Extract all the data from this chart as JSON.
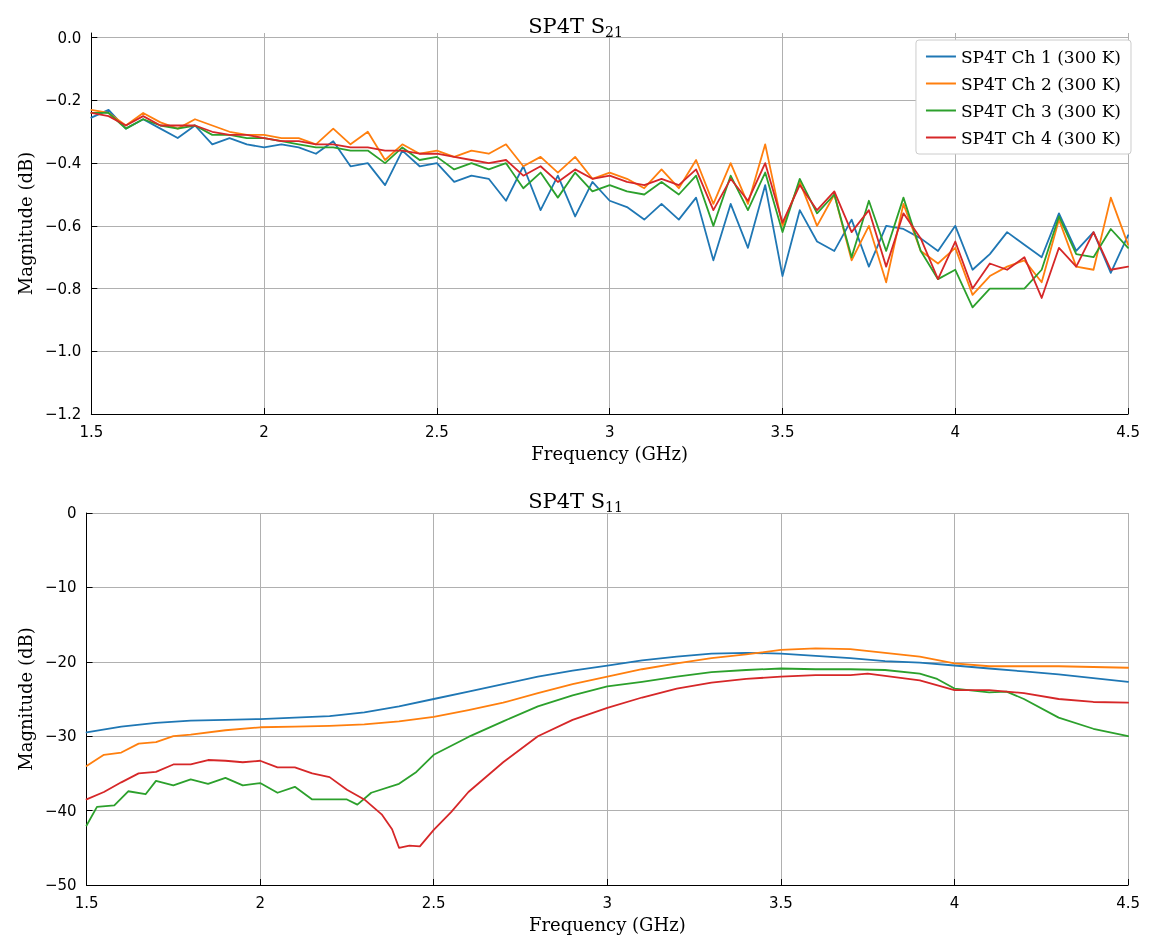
{
  "chart_data": [
    {
      "type": "line",
      "title": "SP4T S$_{21}$",
      "xlabel": "Frequency (GHz)",
      "ylabel": "Magnitude (dB)",
      "xlim": [
        1.5,
        4.5
      ],
      "ylim": [
        -1.2,
        0.015
      ],
      "xticks": [
        1.5,
        2,
        2.5,
        3,
        3.5,
        4,
        4.5
      ],
      "yticks": [
        {
          "value": -1.2,
          "label": "−1.2"
        },
        {
          "value": -1.0,
          "label": "−1.0"
        },
        {
          "value": -0.8,
          "label": "−0.8"
        },
        {
          "value": -0.6,
          "label": "−0.6"
        },
        {
          "value": -0.4,
          "label": "−0.4"
        },
        {
          "value": -0.2,
          "label": "−0.2"
        },
        {
          "value": 0,
          "label": "0.0"
        }
      ],
      "grid": true,
      "legend": "top right",
      "x": [
        1.5,
        1.55,
        1.6,
        1.65,
        1.7,
        1.75,
        1.8,
        1.85,
        1.9,
        1.95,
        2.0,
        2.05,
        2.1,
        2.15,
        2.2,
        2.25,
        2.3,
        2.35,
        2.4,
        2.45,
        2.5,
        2.55,
        2.6,
        2.65,
        2.7,
        2.75,
        2.8,
        2.85,
        2.9,
        2.95,
        3.0,
        3.05,
        3.1,
        3.15,
        3.2,
        3.25,
        3.3,
        3.35,
        3.4,
        3.45,
        3.5,
        3.55,
        3.6,
        3.65,
        3.7,
        3.75,
        3.8,
        3.85,
        3.9,
        3.95,
        4.0,
        4.05,
        4.1,
        4.15,
        4.2,
        4.25,
        4.3,
        4.35,
        4.4,
        4.45,
        4.5
      ],
      "series": [
        {
          "name": "SP4T Ch 1 (300 K)",
          "color": "#1f77b4",
          "values": [
            -0.255,
            -0.23,
            -0.29,
            -0.26,
            -0.29,
            -0.32,
            -0.28,
            -0.34,
            -0.32,
            -0.34,
            -0.35,
            -0.34,
            -0.35,
            -0.37,
            -0.33,
            -0.41,
            -0.4,
            -0.47,
            -0.36,
            -0.41,
            -0.4,
            -0.46,
            -0.44,
            -0.45,
            -0.52,
            -0.41,
            -0.55,
            -0.44,
            -0.57,
            -0.46,
            -0.52,
            -0.54,
            -0.58,
            -0.53,
            -0.58,
            -0.51,
            -0.71,
            -0.53,
            -0.67,
            -0.47,
            -0.76,
            -0.55,
            -0.65,
            -0.68,
            -0.58,
            -0.73,
            -0.6,
            -0.61,
            -0.64,
            -0.68,
            -0.6,
            -0.74,
            -0.69,
            -0.62,
            -0.66,
            -0.7,
            -0.56,
            -0.68,
            -0.62,
            -0.75,
            -0.63
          ]
        },
        {
          "name": "SP4T Ch 2 (300 K)",
          "color": "#ff7f0e",
          "values": [
            -0.23,
            -0.24,
            -0.28,
            -0.24,
            -0.27,
            -0.29,
            -0.26,
            -0.28,
            -0.3,
            -0.31,
            -0.31,
            -0.32,
            -0.32,
            -0.34,
            -0.29,
            -0.34,
            -0.3,
            -0.39,
            -0.34,
            -0.37,
            -0.36,
            -0.38,
            -0.36,
            -0.37,
            -0.34,
            -0.41,
            -0.38,
            -0.43,
            -0.38,
            -0.45,
            -0.43,
            -0.45,
            -0.48,
            -0.42,
            -0.48,
            -0.39,
            -0.53,
            -0.4,
            -0.53,
            -0.34,
            -0.6,
            -0.46,
            -0.6,
            -0.5,
            -0.71,
            -0.6,
            -0.78,
            -0.53,
            -0.68,
            -0.72,
            -0.67,
            -0.82,
            -0.76,
            -0.73,
            -0.71,
            -0.78,
            -0.58,
            -0.73,
            -0.74,
            -0.51,
            -0.66
          ]
        },
        {
          "name": "SP4T Ch 3 (300 K)",
          "color": "#2ca02c",
          "values": [
            -0.24,
            -0.24,
            -0.29,
            -0.26,
            -0.28,
            -0.29,
            -0.28,
            -0.31,
            -0.31,
            -0.32,
            -0.32,
            -0.33,
            -0.34,
            -0.35,
            -0.35,
            -0.36,
            -0.36,
            -0.4,
            -0.35,
            -0.39,
            -0.38,
            -0.42,
            -0.4,
            -0.42,
            -0.4,
            -0.48,
            -0.43,
            -0.51,
            -0.43,
            -0.49,
            -0.47,
            -0.49,
            -0.5,
            -0.46,
            -0.5,
            -0.44,
            -0.6,
            -0.44,
            -0.55,
            -0.43,
            -0.62,
            -0.45,
            -0.56,
            -0.5,
            -0.7,
            -0.52,
            -0.68,
            -0.51,
            -0.68,
            -0.77,
            -0.74,
            -0.86,
            -0.8,
            -0.8,
            -0.8,
            -0.74,
            -0.57,
            -0.69,
            -0.7,
            -0.61,
            -0.67
          ]
        },
        {
          "name": "SP4T Ch 4 (300 K)",
          "color": "#d62728",
          "values": [
            -0.24,
            -0.25,
            -0.28,
            -0.25,
            -0.28,
            -0.28,
            -0.28,
            -0.3,
            -0.31,
            -0.31,
            -0.32,
            -0.33,
            -0.33,
            -0.34,
            -0.34,
            -0.35,
            -0.35,
            -0.36,
            -0.36,
            -0.37,
            -0.37,
            -0.38,
            -0.39,
            -0.4,
            -0.39,
            -0.44,
            -0.41,
            -0.46,
            -0.42,
            -0.45,
            -0.44,
            -0.46,
            -0.47,
            -0.45,
            -0.47,
            -0.42,
            -0.55,
            -0.45,
            -0.52,
            -0.4,
            -0.59,
            -0.47,
            -0.55,
            -0.49,
            -0.62,
            -0.55,
            -0.73,
            -0.56,
            -0.64,
            -0.77,
            -0.65,
            -0.8,
            -0.72,
            -0.74,
            -0.7,
            -0.83,
            -0.67,
            -0.73,
            -0.62,
            -0.74,
            -0.73
          ]
        }
      ]
    },
    {
      "type": "line",
      "title": "SP4T S$_{11}$",
      "xlabel": "Frequency (GHz)",
      "ylabel": "Magnitude (dB)",
      "xlim": [
        1.5,
        4.5
      ],
      "ylim": [
        -50,
        0
      ],
      "xticks": [
        1.5,
        2,
        2.5,
        3,
        3.5,
        4,
        4.5
      ],
      "yticks": [
        {
          "value": -50,
          "label": "−50"
        },
        {
          "value": -40,
          "label": "−40"
        },
        {
          "value": -30,
          "label": "−30"
        },
        {
          "value": -20,
          "label": "−20"
        },
        {
          "value": -10,
          "label": "−10"
        },
        0
      ],
      "grid": true,
      "legend": false,
      "series": [
        {
          "color": "#1f77b4",
          "x": [
            1.5,
            1.6,
            1.7,
            1.8,
            1.9,
            2.0,
            2.1,
            2.2,
            2.3,
            2.4,
            2.5,
            2.6,
            2.7,
            2.8,
            2.9,
            3.0,
            3.1,
            3.2,
            3.3,
            3.4,
            3.5,
            3.6,
            3.7,
            3.8,
            3.9,
            4.0,
            4.1,
            4.2,
            4.3,
            4.4,
            4.5
          ],
          "values": [
            -29.5,
            -28.7,
            -28.2,
            -27.9,
            -27.8,
            -27.7,
            -27.5,
            -27.3,
            -26.8,
            -26.0,
            -25.0,
            -24.0,
            -23.0,
            -22.0,
            -21.2,
            -20.5,
            -19.8,
            -19.3,
            -18.9,
            -18.8,
            -18.9,
            -19.2,
            -19.5,
            -19.9,
            -20.1,
            -20.5,
            -20.9,
            -21.3,
            -21.7,
            -22.2,
            -22.7
          ]
        },
        {
          "color": "#ff7f0e",
          "x": [
            1.5,
            1.55,
            1.6,
            1.65,
            1.7,
            1.75,
            1.8,
            1.9,
            2.0,
            2.1,
            2.2,
            2.3,
            2.4,
            2.5,
            2.6,
            2.7,
            2.8,
            2.9,
            3.0,
            3.1,
            3.2,
            3.3,
            3.4,
            3.5,
            3.6,
            3.7,
            3.8,
            3.9,
            4.0,
            4.1,
            4.2,
            4.3,
            4.4,
            4.5
          ],
          "values": [
            -34.0,
            -32.5,
            -32.2,
            -31.0,
            -30.8,
            -30.0,
            -29.8,
            -29.2,
            -28.8,
            -28.7,
            -28.6,
            -28.4,
            -28.0,
            -27.4,
            -26.5,
            -25.5,
            -24.2,
            -23.0,
            -22.0,
            -21.0,
            -20.2,
            -19.5,
            -19.0,
            -18.4,
            -18.2,
            -18.3,
            -18.8,
            -19.3,
            -20.2,
            -20.6,
            -20.6,
            -20.6,
            -20.7,
            -20.8
          ]
        },
        {
          "color": "#2ca02c",
          "x": [
            1.5,
            1.53,
            1.58,
            1.62,
            1.67,
            1.7,
            1.75,
            1.8,
            1.85,
            1.9,
            1.95,
            2.0,
            2.05,
            2.1,
            2.15,
            2.2,
            2.25,
            2.28,
            2.32,
            2.4,
            2.45,
            2.5,
            2.6,
            2.7,
            2.8,
            2.9,
            3.0,
            3.1,
            3.2,
            3.3,
            3.4,
            3.5,
            3.6,
            3.7,
            3.8,
            3.9,
            3.95,
            4.0,
            4.1,
            4.15,
            4.2,
            4.3,
            4.4,
            4.5
          ],
          "values": [
            -42.0,
            -39.5,
            -39.3,
            -37.4,
            -37.8,
            -36.0,
            -36.6,
            -35.8,
            -36.4,
            -35.6,
            -36.6,
            -36.3,
            -37.6,
            -36.8,
            -38.5,
            -38.5,
            -38.5,
            -39.2,
            -37.6,
            -36.4,
            -34.8,
            -32.5,
            -30.1,
            -28.0,
            -26.0,
            -24.5,
            -23.3,
            -22.7,
            -22.0,
            -21.4,
            -21.1,
            -20.9,
            -21.0,
            -21.0,
            -21.1,
            -21.6,
            -22.3,
            -23.6,
            -24.1,
            -24.0,
            -25.0,
            -27.5,
            -29.0,
            -30.0
          ]
        },
        {
          "color": "#d62728",
          "x": [
            1.5,
            1.55,
            1.6,
            1.65,
            1.7,
            1.75,
            1.8,
            1.85,
            1.9,
            1.95,
            2.0,
            2.05,
            2.1,
            2.15,
            2.2,
            2.25,
            2.3,
            2.35,
            2.38,
            2.4,
            2.43,
            2.46,
            2.5,
            2.55,
            2.6,
            2.7,
            2.8,
            2.9,
            3.0,
            3.1,
            3.2,
            3.3,
            3.4,
            3.5,
            3.6,
            3.7,
            3.75,
            3.8,
            3.9,
            4.0,
            4.1,
            4.2,
            4.3,
            4.4,
            4.5
          ],
          "values": [
            -38.5,
            -37.5,
            -36.2,
            -35.0,
            -34.8,
            -33.8,
            -33.8,
            -33.2,
            -33.3,
            -33.5,
            -33.3,
            -34.2,
            -34.2,
            -35.0,
            -35.5,
            -37.2,
            -38.5,
            -40.5,
            -42.5,
            -45.0,
            -44.7,
            -44.8,
            -42.6,
            -40.2,
            -37.5,
            -33.5,
            -30.0,
            -27.8,
            -26.2,
            -24.8,
            -23.6,
            -22.8,
            -22.3,
            -22.0,
            -21.8,
            -21.8,
            -21.6,
            -21.9,
            -22.5,
            -23.8,
            -23.8,
            -24.2,
            -25.0,
            -25.4,
            -25.5
          ]
        }
      ]
    }
  ]
}
